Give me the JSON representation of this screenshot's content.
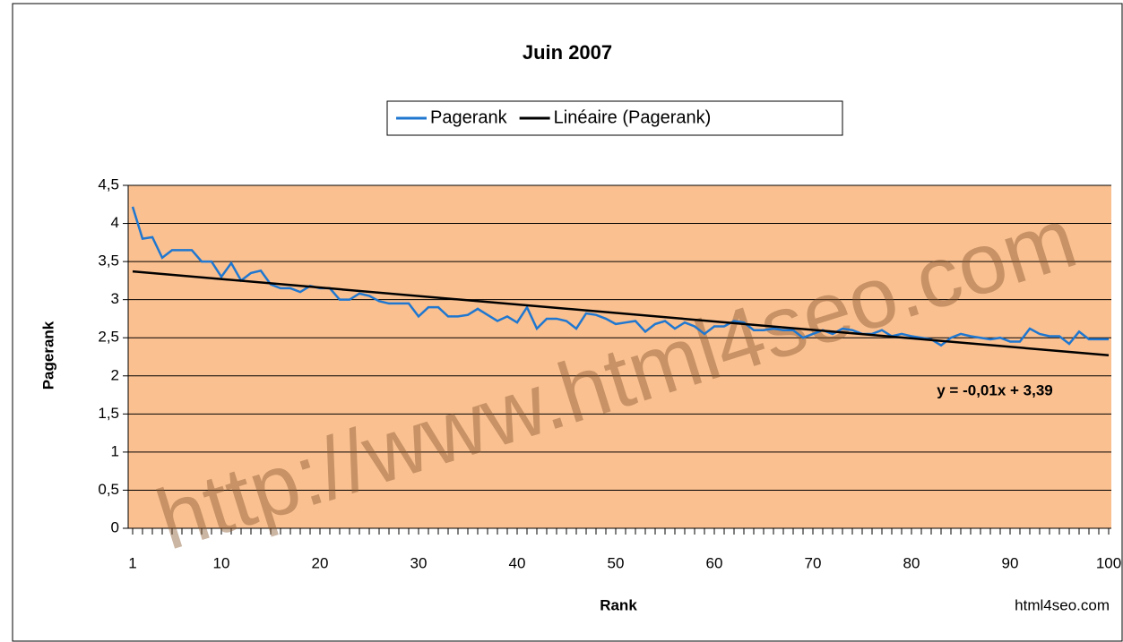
{
  "chart_data": {
    "type": "line",
    "title": "Juin 2007",
    "xlabel": "Rank",
    "ylabel": "Pagerank",
    "annotation": "y = -0,01x + 3,39",
    "watermark": "http://www.html4seo.com",
    "credit": "html4seo.com",
    "xlim": [
      1,
      100
    ],
    "xticks": [
      1,
      10,
      20,
      30,
      40,
      50,
      60,
      70,
      80,
      90,
      100
    ],
    "ylim": [
      0,
      4.5
    ],
    "yticks": [
      0,
      {
        "value": 0.5,
        "label": "0,5"
      },
      1,
      {
        "value": 1.5,
        "label": "1,5"
      },
      2,
      {
        "value": 2.5,
        "label": "2,5"
      },
      3,
      {
        "value": 3.5,
        "label": "3,5"
      },
      4,
      {
        "value": 4.5,
        "label": "4,5"
      }
    ],
    "grid": true,
    "legend": "top",
    "background": "#fac090",
    "series": [
      {
        "name": "Pagerank",
        "color": "#1f77d0",
        "x": [
          1,
          2,
          3,
          4,
          5,
          6,
          7,
          8,
          9,
          10,
          11,
          12,
          13,
          14,
          15,
          16,
          17,
          18,
          19,
          20,
          21,
          22,
          23,
          24,
          25,
          26,
          27,
          28,
          29,
          30,
          31,
          32,
          33,
          34,
          35,
          36,
          37,
          38,
          39,
          40,
          41,
          42,
          43,
          44,
          45,
          46,
          47,
          48,
          49,
          50,
          51,
          52,
          53,
          54,
          55,
          56,
          57,
          58,
          59,
          60,
          61,
          62,
          63,
          64,
          65,
          66,
          67,
          68,
          69,
          70,
          71,
          72,
          73,
          74,
          75,
          76,
          77,
          78,
          79,
          80,
          81,
          82,
          83,
          84,
          85,
          86,
          87,
          88,
          89,
          90,
          91,
          92,
          93,
          94,
          95,
          96,
          97,
          98,
          99,
          100
        ],
        "values": [
          4.22,
          3.8,
          3.82,
          3.55,
          3.65,
          3.65,
          3.65,
          3.5,
          3.5,
          3.3,
          3.48,
          3.25,
          3.35,
          3.38,
          3.2,
          3.15,
          3.15,
          3.1,
          3.18,
          3.15,
          3.15,
          3.0,
          3.0,
          3.08,
          3.05,
          2.98,
          2.95,
          2.95,
          2.95,
          2.78,
          2.9,
          2.9,
          2.78,
          2.78,
          2.8,
          2.88,
          2.8,
          2.72,
          2.78,
          2.7,
          2.9,
          2.62,
          2.75,
          2.75,
          2.72,
          2.62,
          2.82,
          2.8,
          2.75,
          2.68,
          2.7,
          2.72,
          2.58,
          2.68,
          2.72,
          2.62,
          2.7,
          2.65,
          2.55,
          2.65,
          2.65,
          2.72,
          2.7,
          2.6,
          2.6,
          2.62,
          2.6,
          2.6,
          2.5,
          2.55,
          2.6,
          2.55,
          2.62,
          2.6,
          2.55,
          2.55,
          2.6,
          2.52,
          2.55,
          2.52,
          2.5,
          2.48,
          2.4,
          2.5,
          2.55,
          2.52,
          2.5,
          2.48,
          2.5,
          2.45,
          2.45,
          2.62,
          2.55,
          2.52,
          2.52,
          2.42,
          2.58,
          2.48,
          2.48,
          2.48
        ]
      },
      {
        "name": "Linéaire (Pagerank)",
        "color": "#000000",
        "x": [
          1,
          100
        ],
        "values": [
          3.37,
          2.27
        ]
      }
    ]
  }
}
